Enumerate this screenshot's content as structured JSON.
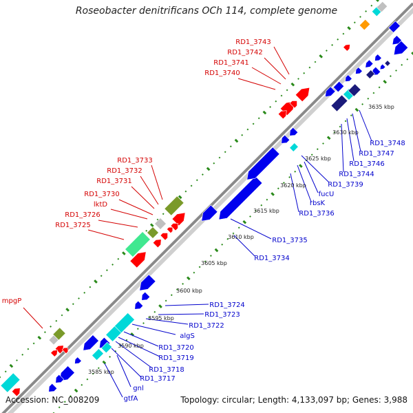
{
  "title": "Roseobacter denitrificans OCh 114, complete genome",
  "accession": "Accession: NC_008209",
  "topology": "Topology: circular; Length: 4,133,097 bp; Genes: 3,988",
  "colors": {
    "forward_label": "#d40000",
    "reverse_label": "#0000cc",
    "forward_gene": "#ff0000",
    "reverse_gene": "#0000ee",
    "rna_gene": "#00d8d8",
    "pseudo_gene": "#c0c0c0",
    "olive_gene": "#7a9a2a",
    "green_gene": "#40e890",
    "orange_gene": "#ff9a00",
    "navy_gene": "#1a1a7a",
    "backbone": "#8a8a8a",
    "tick_dots": "#2a8a1a"
  },
  "ticks": [
    "3585 kbp",
    "3590 kbp",
    "3595 kbp",
    "3600 kbp",
    "3605 kbp",
    "3610 kbp",
    "3615 kbp",
    "3620 kbp",
    "3625 kbp",
    "3630 kbp",
    "3635 kbp"
  ],
  "labels": {
    "forward": [
      "RD1_3743",
      "RD1_3742",
      "RD1_3741",
      "RD1_3740",
      "RD1_3733",
      "RD1_3732",
      "RD1_3731",
      "RD1_3730",
      "lktD",
      "RD1_3726",
      "RD1_3725",
      "mpgP"
    ],
    "reverse": [
      "RD1_3748",
      "RD1_3747",
      "RD1_3746",
      "RD1_3744",
      "RD1_3739",
      "fucU",
      "rbsK",
      "RD1_3736",
      "RD1_3735",
      "RD1_3734",
      "RD1_3724",
      "RD1_3723",
      "RD1_3722",
      "algS",
      "RD1_3720",
      "RD1_3719",
      "RD1_3718",
      "RD1_3717",
      "gnl",
      "gtfA"
    ]
  }
}
